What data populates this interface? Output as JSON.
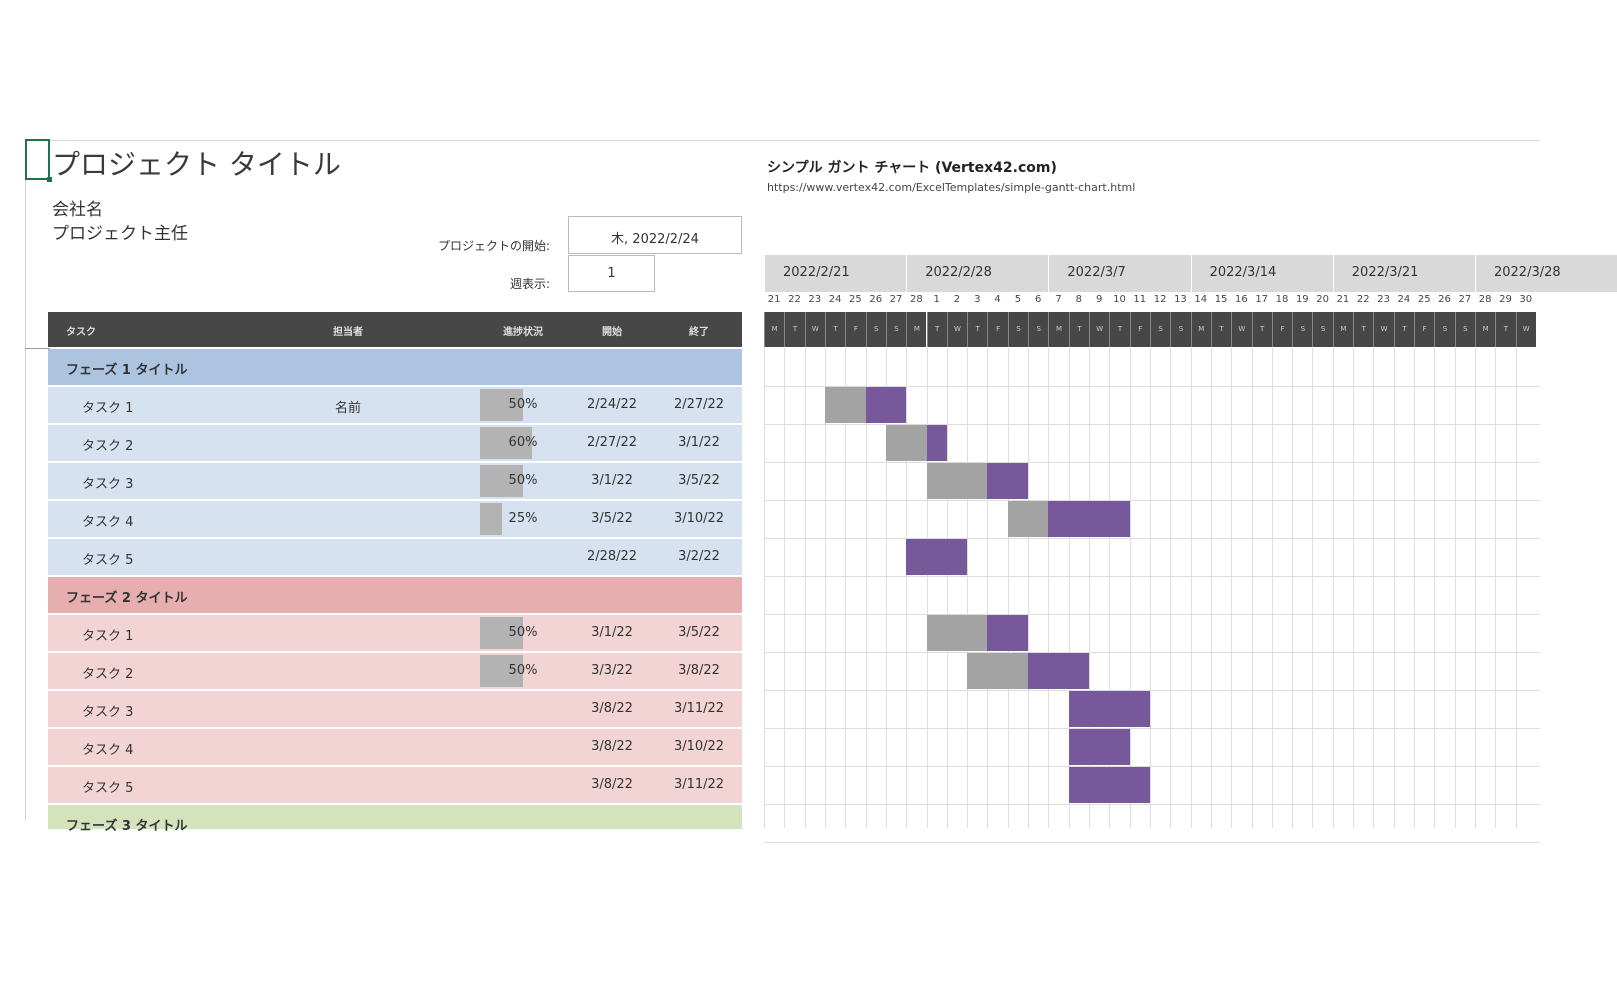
{
  "title": "プロジェクト タイトル",
  "company": "会社名",
  "lead": "プロジェクト主任",
  "start_label": "プロジェクトの開始:",
  "start_value": "木, 2022/2/24",
  "week_label": "週表示:",
  "week_value": "1",
  "vertex_title": "シンプル ガント チャート (Vertex42.com)",
  "vertex_url": "https://www.vertex42.com/ExcelTemplates/simple-gantt-chart.html",
  "columns": {
    "task": "タスク",
    "owner": "担当者",
    "progress": "進捗状況",
    "start": "開始",
    "end": "終了"
  },
  "colors": {
    "header": "#474747",
    "phase1": "#adc4e0",
    "phase1_task": "#d6e2ef",
    "phase2": "#e6aeae",
    "phase2_task": "#f2d4d4",
    "phase3": "#d4e3bb",
    "bar": "#77589a",
    "progress_bar": "#a3a3a3"
  },
  "weeks": [
    "2022/2/21",
    "2022/2/28",
    "2022/3/7",
    "2022/3/14",
    "2022/3/21",
    "2022/3/28"
  ],
  "day_numbers": [
    21,
    22,
    23,
    24,
    25,
    26,
    27,
    28,
    1,
    2,
    3,
    4,
    5,
    6,
    7,
    8,
    9,
    10,
    11,
    12,
    13,
    14,
    15,
    16,
    17,
    18,
    19,
    20,
    21,
    22,
    23,
    24,
    25,
    26,
    27,
    28,
    29,
    30
  ],
  "day_letters": [
    "M",
    "T",
    "W",
    "T",
    "F",
    "S",
    "S"
  ],
  "phases": [
    {
      "title": "フェーズ 1 タイトル",
      "tasks": [
        {
          "name": "タスク 1",
          "owner": "名前",
          "progress": 50,
          "progress_label": "50%",
          "start": "2/24/22",
          "end": "2/27/22"
        },
        {
          "name": "タスク 2",
          "owner": "",
          "progress": 60,
          "progress_label": "60%",
          "start": "2/27/22",
          "end": "3/1/22"
        },
        {
          "name": "タスク 3",
          "owner": "",
          "progress": 50,
          "progress_label": "50%",
          "start": "3/1/22",
          "end": "3/5/22"
        },
        {
          "name": "タスク 4",
          "owner": "",
          "progress": 25,
          "progress_label": "25%",
          "start": "3/5/22",
          "end": "3/10/22"
        },
        {
          "name": "タスク 5",
          "owner": "",
          "progress": 0,
          "progress_label": "",
          "start": "2/28/22",
          "end": "3/2/22"
        }
      ]
    },
    {
      "title": "フェーズ 2 タイトル",
      "tasks": [
        {
          "name": "タスク 1",
          "owner": "",
          "progress": 50,
          "progress_label": "50%",
          "start": "3/1/22",
          "end": "3/5/22"
        },
        {
          "name": "タスク 2",
          "owner": "",
          "progress": 50,
          "progress_label": "50%",
          "start": "3/3/22",
          "end": "3/8/22"
        },
        {
          "name": "タスク 3",
          "owner": "",
          "progress": 0,
          "progress_label": "",
          "start": "3/8/22",
          "end": "3/11/22"
        },
        {
          "name": "タスク 4",
          "owner": "",
          "progress": 0,
          "progress_label": "",
          "start": "3/8/22",
          "end": "3/10/22"
        },
        {
          "name": "タスク 5",
          "owner": "",
          "progress": 0,
          "progress_label": "",
          "start": "3/8/22",
          "end": "3/11/22"
        }
      ]
    },
    {
      "title": "フェーズ 3 タイトル",
      "tasks": []
    }
  ]
}
